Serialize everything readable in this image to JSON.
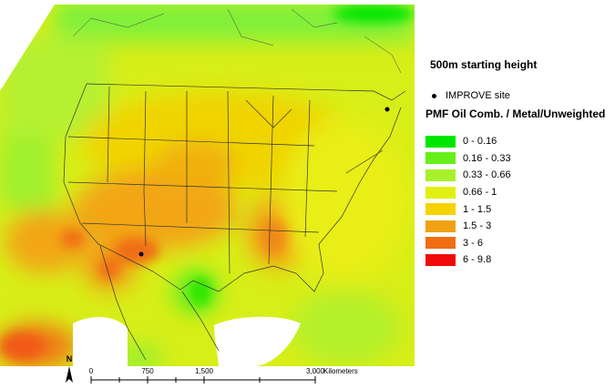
{
  "legend": {
    "title": "500m starting height",
    "site_label": "IMPROVE site",
    "header": "PMF Oil Comb. / Metal/Unweighted",
    "classes": [
      {
        "label": "0 - 0.16",
        "color": "#00e600"
      },
      {
        "label": "0.16 - 0.33",
        "color": "#66ef1a"
      },
      {
        "label": "0.33 - 0.66",
        "color": "#a8f02a"
      },
      {
        "label": "0.66 - 1",
        "color": "#e2f010"
      },
      {
        "label": "1 - 1.5",
        "color": "#f5d300"
      },
      {
        "label": "1.5 - 3",
        "color": "#f0a214"
      },
      {
        "label": "3 - 6",
        "color": "#f06d14"
      },
      {
        "label": "6 - 9.8",
        "color": "#f00a0a"
      }
    ]
  },
  "scale": {
    "ticks": [
      "0",
      "750",
      "1,500",
      "3,000"
    ],
    "unit": "Kilometers",
    "north": "N"
  }
}
